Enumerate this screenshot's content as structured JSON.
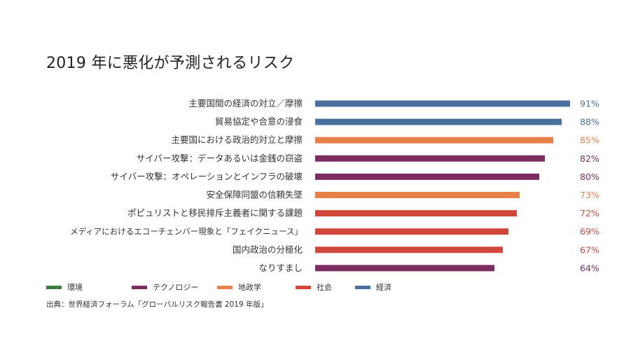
{
  "title": "2019 年に悪化が予測されるリスク",
  "source": "出典：世界経済フォーラム「グローバルリスク報告書 2019 年版」",
  "colors": {
    "環境": "#3a7d44",
    "テクノロジー": "#7b2d5f",
    "地政学": "#e8804a",
    "社会": "#d2473b",
    "経済": "#4a70a0"
  },
  "chart_data": {
    "type": "bar",
    "orientation": "horizontal",
    "title": "2019 年に悪化が予測されるリスク",
    "categories": [
      "主要国間の経済の対立／摩擦",
      "貿易協定や合意の浸食",
      "主要国における政治的対立と摩擦",
      "サイバー攻撃：データあるいは金銭の窃盗",
      "サイバー攻撃：オペレーションとインフラの破壊",
      "安全保障同盟の信頼失墜",
      "ポピュリストと移民排斥主義者に関する課題",
      "メディアにおけるエコーチェンバー現象と「フェイクニュース」",
      "国内政治の分極化",
      "なりすまし"
    ],
    "values": [
      91,
      88,
      85,
      82,
      80,
      73,
      72,
      69,
      67,
      64
    ],
    "value_labels": [
      "91%",
      "88%",
      "85%",
      "82%",
      "80%",
      "73%",
      "72%",
      "69%",
      "67%",
      "64%"
    ],
    "groups": [
      "経済",
      "経済",
      "地政学",
      "テクノロジー",
      "テクノロジー",
      "地政学",
      "社会",
      "社会",
      "社会",
      "テクノロジー"
    ],
    "legend": [
      "環境",
      "テクノロジー",
      "地政学",
      "社会",
      "経済"
    ],
    "legend_position": "bottom",
    "xlim": [
      0,
      100
    ],
    "grid": false
  }
}
